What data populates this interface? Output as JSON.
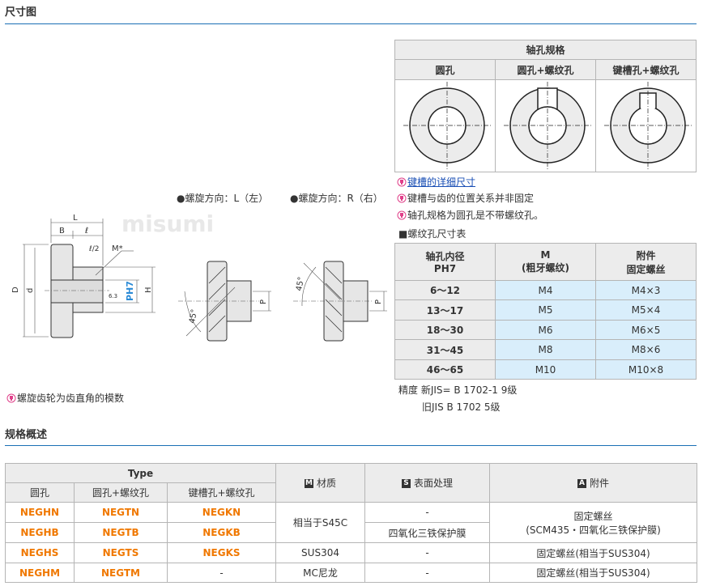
{
  "dimension_section": {
    "title": "尺寸图"
  },
  "drawing": {
    "labels": {
      "L": "L",
      "B": "B",
      "l": "ℓ",
      "l2": "ℓ/2",
      "M": "M*",
      "D": "D",
      "d": "d",
      "P": "P",
      "PH7": "PH7",
      "H": "H",
      "roughness": "6.3",
      "angle": "45°",
      "watermark": "misumi"
    },
    "helix_left": "●螺旋方向：L（左）",
    "helix_right": "●螺旋方向：R（右）",
    "note": "螺旋齿轮为齿直角的模数"
  },
  "bore_table": {
    "title": "轴孔规格",
    "columns": [
      "圆孔",
      "圆孔+螺纹孔",
      "键槽孔+螺纹孔"
    ]
  },
  "notes": [
    {
      "text": "键槽的详细尺寸",
      "link": true
    },
    {
      "text": "键槽与齿的位置关系并非固定",
      "link": false
    },
    {
      "text": "轴孔规格为圆孔是不带螺纹孔。",
      "link": false
    }
  ],
  "thread_table": {
    "title": "■螺纹孔尺寸表",
    "headers": [
      [
        "轴孔内径",
        "PH7"
      ],
      [
        "M",
        "(粗牙螺纹)"
      ],
      [
        "附件",
        "固定螺丝"
      ]
    ],
    "rows": [
      [
        "6～12",
        "M4",
        "M4×3"
      ],
      [
        "13～17",
        "M5",
        "M5×4"
      ],
      [
        "18～30",
        "M6",
        "M6×5"
      ],
      [
        "31～45",
        "M8",
        "M8×6"
      ],
      [
        "46～65",
        "M10",
        "M10×8"
      ]
    ]
  },
  "precision": {
    "line1": "精度 新JIS= B 1702-1 9级",
    "line2": "旧JIS B 1702 5级"
  },
  "spec_section": {
    "title": "规格概述"
  },
  "spec_table": {
    "type_header": "Type",
    "type_cols": [
      "圆孔",
      "圆孔+螺纹孔",
      "键槽孔+螺纹孔"
    ],
    "material_header": {
      "badge": "M",
      "label": "材质"
    },
    "surface_header": {
      "badge": "S",
      "label": "表面处理"
    },
    "accessory_header": {
      "badge": "A",
      "label": "附件"
    },
    "rows": [
      {
        "types": [
          "NEGHN",
          "NEGTN",
          "NEGKN"
        ],
        "surface": "-"
      },
      {
        "types": [
          "NEGHB",
          "NEGTB",
          "NEGKB"
        ],
        "surface": "四氧化三铁保护膜"
      },
      {
        "types": [
          "NEGHS",
          "NEGTS",
          "NEGKS"
        ],
        "material": "SUS304",
        "surface": "-",
        "accessory": "固定螺丝(相当于SUS304)"
      },
      {
        "types": [
          "NEGHM",
          "NEGTM",
          "-"
        ],
        "material": "MC尼龙",
        "surface": "-",
        "accessory": "固定螺丝(相当于SUS304)"
      }
    ],
    "merged_material": "相当于S45C",
    "merged_accessory": {
      "line1": "固定螺丝",
      "line2": "(SCM435・四氧化三铁保护膜)"
    }
  },
  "colors": {
    "accent_line": "#1a6fb5",
    "type_code": "#f07800",
    "cell_blue": "#d9eefb",
    "header_gray": "#ececec"
  }
}
